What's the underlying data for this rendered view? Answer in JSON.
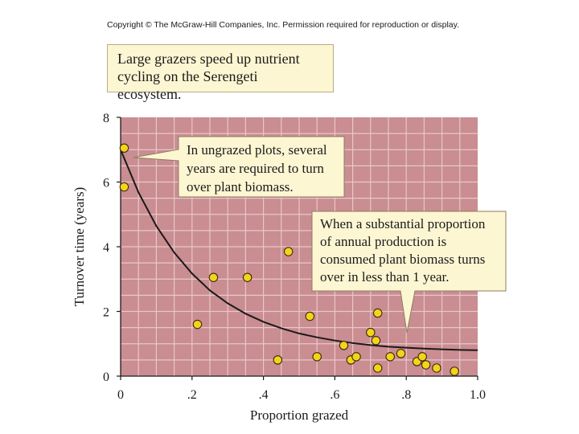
{
  "copyright": "Copyright © The McGraw-Hill Companies, Inc. Permission required for reproduction or display.",
  "title_lines": [
    "Large grazers speed up nutrient",
    "cycling on the Serengeti ecosystem."
  ],
  "callouts": {
    "ungrazed": [
      "In ungrazed plots, several",
      "years are required to turn",
      "over plant biomass."
    ],
    "grazed": [
      "When a substantial proportion",
      "of annual production is",
      "consumed plant biomass turns",
      "over in less than 1 year."
    ]
  },
  "colors": {
    "plot_background": "#c98d92",
    "grid": "#e9c7c9",
    "point_fill": "#f5d31a",
    "callout_fill": "#fdf6d3"
  },
  "chart_data": {
    "type": "scatter",
    "title": "",
    "xlabel": "Proportion grazed",
    "ylabel": "Turnover time (years)",
    "xlim": [
      0,
      1.0
    ],
    "ylim": [
      0,
      8
    ],
    "x_ticks": [
      0,
      0.2,
      0.4,
      0.6,
      0.8,
      1.0
    ],
    "x_tick_labels": [
      "0",
      ".2",
      ".4",
      ".6",
      ".8",
      "1.0"
    ],
    "y_ticks": [
      0,
      2,
      4,
      6,
      8
    ],
    "y_tick_labels": [
      "0",
      "2",
      "4",
      "6",
      "8"
    ],
    "grid": true,
    "points": [
      {
        "x": 0.01,
        "y": 7.05
      },
      {
        "x": 0.01,
        "y": 5.85
      },
      {
        "x": 0.215,
        "y": 1.6
      },
      {
        "x": 0.26,
        "y": 3.05
      },
      {
        "x": 0.355,
        "y": 3.05
      },
      {
        "x": 0.44,
        "y": 0.5
      },
      {
        "x": 0.47,
        "y": 3.85
      },
      {
        "x": 0.53,
        "y": 1.85
      },
      {
        "x": 0.55,
        "y": 0.6
      },
      {
        "x": 0.625,
        "y": 0.95
      },
      {
        "x": 0.645,
        "y": 0.5
      },
      {
        "x": 0.66,
        "y": 0.6
      },
      {
        "x": 0.7,
        "y": 1.35
      },
      {
        "x": 0.715,
        "y": 1.1
      },
      {
        "x": 0.72,
        "y": 0.25
      },
      {
        "x": 0.72,
        "y": 1.95
      },
      {
        "x": 0.755,
        "y": 0.6
      },
      {
        "x": 0.785,
        "y": 0.7
      },
      {
        "x": 0.83,
        "y": 0.45
      },
      {
        "x": 0.845,
        "y": 0.6
      },
      {
        "x": 0.855,
        "y": 0.35
      },
      {
        "x": 0.885,
        "y": 0.25
      },
      {
        "x": 0.935,
        "y": 0.15
      }
    ],
    "fit_curve": {
      "description": "exponential decay",
      "x": [
        0,
        0.05,
        0.1,
        0.15,
        0.2,
        0.25,
        0.3,
        0.35,
        0.4,
        0.45,
        0.5,
        0.55,
        0.6,
        0.65,
        0.7,
        0.75,
        0.8,
        0.85,
        0.9,
        0.95,
        1.0
      ],
      "y": [
        7.0,
        5.68,
        4.64,
        3.82,
        3.17,
        2.65,
        2.25,
        1.93,
        1.68,
        1.48,
        1.32,
        1.2,
        1.1,
        1.02,
        0.96,
        0.91,
        0.88,
        0.85,
        0.83,
        0.81,
        0.8
      ]
    }
  }
}
